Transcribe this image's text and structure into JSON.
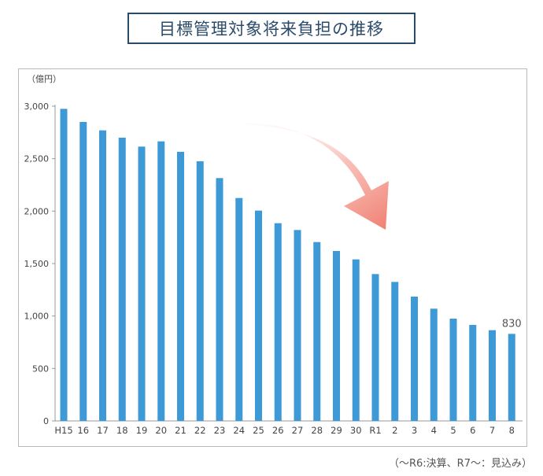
{
  "chart_data": {
    "type": "bar",
    "title": "目標管理対象将来負担の推移",
    "unit_label": "（億円）",
    "footnote": "（～R6:決算、R7～：見込み）",
    "categories": [
      "H15",
      "16",
      "17",
      "18",
      "19",
      "20",
      "21",
      "22",
      "23",
      "24",
      "25",
      "26",
      "27",
      "28",
      "29",
      "30",
      "R1",
      "2",
      "3",
      "4",
      "5",
      "6",
      "7",
      "8"
    ],
    "values": [
      2975,
      2850,
      2770,
      2700,
      2615,
      2665,
      2565,
      2475,
      2315,
      2125,
      2005,
      1885,
      1820,
      1705,
      1620,
      1540,
      1400,
      1325,
      1185,
      1070,
      975,
      915,
      865,
      830
    ],
    "yticks": [
      0,
      500,
      1000,
      1500,
      2000,
      2500,
      3000
    ],
    "ylim": [
      0,
      3000
    ],
    "grid": false,
    "annotations": [
      {
        "category": "8",
        "text": "830"
      }
    ],
    "bar_color": "#3d9ad6",
    "arrow_color": "#f28c80"
  }
}
